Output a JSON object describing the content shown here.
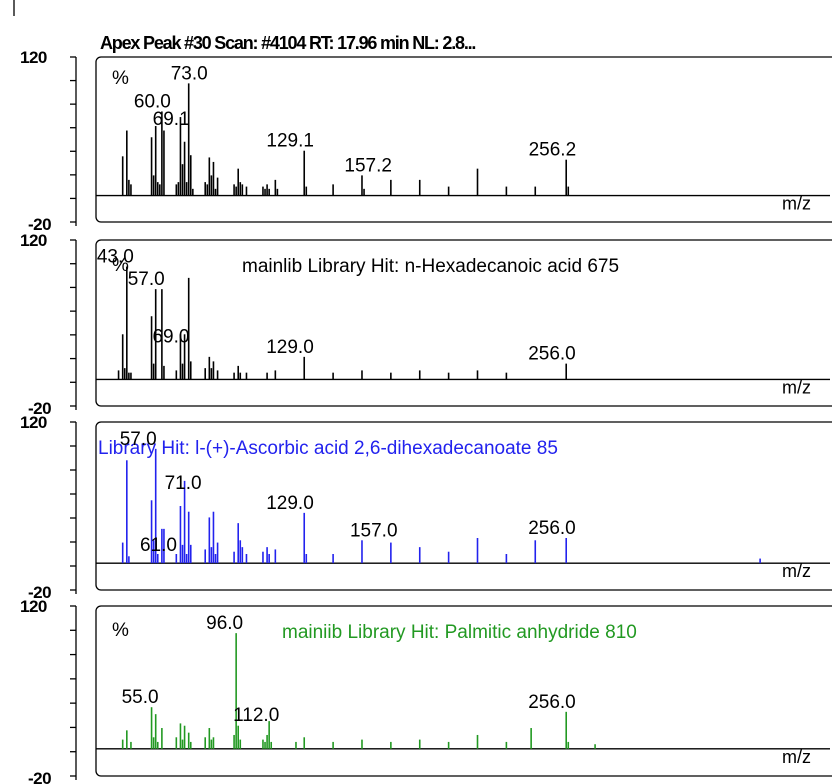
{
  "header": "Apex Peak #30 Scan: #4104  RT: 17.96 min NL: 2.8...",
  "chart_data": [
    {
      "type": "bar",
      "title": "Apex Peak #30 Scan: #4104  RT: 17.96 min NL: 2.8...",
      "ylim": [
        -20,
        120
      ],
      "ytick_labels": [
        "120",
        "-20"
      ],
      "ylabel": "%",
      "xlabel": "m/z",
      "color": "#000000",
      "peak_labels": [
        {
          "mz": 73.0,
          "label": "73.0"
        },
        {
          "mz": 60.0,
          "label": "60.0"
        },
        {
          "mz": 69.1,
          "label": "69.1"
        },
        {
          "mz": 129.1,
          "label": "129.1"
        },
        {
          "mz": 157.2,
          "label": "157.2"
        },
        {
          "mz": 256.2,
          "label": "256.2"
        }
      ],
      "peaks": [
        [
          41,
          35
        ],
        [
          43,
          58
        ],
        [
          44,
          14
        ],
        [
          45,
          10
        ],
        [
          55,
          52
        ],
        [
          56,
          18
        ],
        [
          57,
          62
        ],
        [
          58,
          12
        ],
        [
          59,
          10
        ],
        [
          60,
          75
        ],
        [
          61,
          58
        ],
        [
          67,
          10
        ],
        [
          68,
          12
        ],
        [
          69,
          70
        ],
        [
          70,
          28
        ],
        [
          71,
          48
        ],
        [
          72,
          12
        ],
        [
          73,
          100
        ],
        [
          74,
          36
        ],
        [
          75,
          6
        ],
        [
          81,
          12
        ],
        [
          82,
          10
        ],
        [
          83,
          34
        ],
        [
          84,
          18
        ],
        [
          85,
          30
        ],
        [
          86,
          6
        ],
        [
          87,
          16
        ],
        [
          95,
          10
        ],
        [
          96,
          8
        ],
        [
          97,
          24
        ],
        [
          98,
          12
        ],
        [
          99,
          10
        ],
        [
          101,
          8
        ],
        [
          109,
          8
        ],
        [
          110,
          6
        ],
        [
          111,
          10
        ],
        [
          112,
          6
        ],
        [
          115,
          14
        ],
        [
          116,
          6
        ],
        [
          129,
          40
        ],
        [
          130,
          8
        ],
        [
          143,
          10
        ],
        [
          157,
          18
        ],
        [
          158,
          6
        ],
        [
          171,
          14
        ],
        [
          185,
          14
        ],
        [
          199,
          8
        ],
        [
          213,
          24
        ],
        [
          227,
          8
        ],
        [
          241,
          8
        ],
        [
          256,
          32
        ],
        [
          257,
          8
        ]
      ]
    },
    {
      "type": "bar",
      "title": "mainlib Library Hit: n-Hexadecanoic acid 675",
      "ylim": [
        -20,
        120
      ],
      "ytick_labels": [
        "120",
        "-20"
      ],
      "ylabel": "%",
      "xlabel": "m/z",
      "color": "#000000",
      "peak_labels": [
        {
          "mz": 43.0,
          "label": "43.0"
        },
        {
          "mz": 57.0,
          "label": "57.0"
        },
        {
          "mz": 69.0,
          "label": "69.0"
        },
        {
          "mz": 129.0,
          "label": "129.0"
        },
        {
          "mz": 256.0,
          "label": "256.0"
        }
      ],
      "peaks": [
        [
          39,
          8
        ],
        [
          41,
          40
        ],
        [
          42,
          10
        ],
        [
          43,
          100
        ],
        [
          44,
          6
        ],
        [
          45,
          6
        ],
        [
          55,
          56
        ],
        [
          56,
          14
        ],
        [
          57,
          80
        ],
        [
          60,
          80
        ],
        [
          61,
          12
        ],
        [
          67,
          8
        ],
        [
          69,
          40
        ],
        [
          70,
          14
        ],
        [
          71,
          40
        ],
        [
          73,
          90
        ],
        [
          74,
          16
        ],
        [
          81,
          10
        ],
        [
          83,
          20
        ],
        [
          84,
          10
        ],
        [
          85,
          16
        ],
        [
          87,
          8
        ],
        [
          95,
          6
        ],
        [
          97,
          12
        ],
        [
          98,
          6
        ],
        [
          101,
          6
        ],
        [
          111,
          6
        ],
        [
          115,
          8
        ],
        [
          129,
          20
        ],
        [
          143,
          6
        ],
        [
          157,
          8
        ],
        [
          171,
          6
        ],
        [
          185,
          8
        ],
        [
          199,
          6
        ],
        [
          213,
          8
        ],
        [
          227,
          6
        ],
        [
          256,
          14
        ]
      ]
    },
    {
      "type": "bar",
      "title": "Library Hit: l-(+)-Ascorbic acid 2,6-dihexadecanoate 85",
      "ylim": [
        -20,
        120
      ],
      "ytick_labels": [
        "120",
        "-20"
      ],
      "ylabel": "%",
      "xlabel": "m/z",
      "color": "#2222ee",
      "peak_labels": [
        {
          "mz": 57.0,
          "label": "57.0"
        },
        {
          "mz": 71.0,
          "label": "71.0"
        },
        {
          "mz": 61.0,
          "label": "61.0"
        },
        {
          "mz": 129.0,
          "label": "129.0"
        },
        {
          "mz": 157.0,
          "label": "157.0"
        },
        {
          "mz": 256.0,
          "label": "256.0"
        }
      ],
      "peaks": [
        [
          41,
          18
        ],
        [
          43,
          90
        ],
        [
          44,
          6
        ],
        [
          55,
          55
        ],
        [
          56,
          20
        ],
        [
          57,
          100
        ],
        [
          58,
          8
        ],
        [
          60,
          30
        ],
        [
          61,
          30
        ],
        [
          67,
          8
        ],
        [
          69,
          50
        ],
        [
          70,
          16
        ],
        [
          71,
          72
        ],
        [
          72,
          8
        ],
        [
          73,
          45
        ],
        [
          74,
          16
        ],
        [
          81,
          12
        ],
        [
          83,
          40
        ],
        [
          84,
          14
        ],
        [
          85,
          45
        ],
        [
          86,
          8
        ],
        [
          87,
          18
        ],
        [
          95,
          10
        ],
        [
          97,
          35
        ],
        [
          98,
          20
        ],
        [
          99,
          14
        ],
        [
          101,
          8
        ],
        [
          109,
          10
        ],
        [
          111,
          14
        ],
        [
          112,
          8
        ],
        [
          115,
          12
        ],
        [
          129,
          44
        ],
        [
          130,
          8
        ],
        [
          143,
          8
        ],
        [
          157,
          20
        ],
        [
          171,
          18
        ],
        [
          185,
          14
        ],
        [
          199,
          10
        ],
        [
          213,
          22
        ],
        [
          227,
          8
        ],
        [
          241,
          20
        ],
        [
          256,
          22
        ],
        [
          350,
          4
        ]
      ]
    },
    {
      "type": "bar",
      "title": "mainiib Library Hit: Palmitic anhydride 810",
      "ylim": [
        -20,
        120
      ],
      "ytick_labels": [
        "120",
        "-20"
      ],
      "ylabel": "%",
      "xlabel": "m/z",
      "color": "#229922",
      "peak_labels": [
        {
          "mz": 96.0,
          "label": "96.0"
        },
        {
          "mz": 55.0,
          "label": "55.0"
        },
        {
          "mz": 112.0,
          "label": "112.0"
        },
        {
          "mz": 256.0,
          "label": "256.0"
        }
      ],
      "peaks": [
        [
          41,
          8
        ],
        [
          43,
          16
        ],
        [
          45,
          6
        ],
        [
          55,
          36
        ],
        [
          56,
          10
        ],
        [
          57,
          30
        ],
        [
          58,
          6
        ],
        [
          60,
          18
        ],
        [
          67,
          10
        ],
        [
          69,
          22
        ],
        [
          70,
          8
        ],
        [
          71,
          20
        ],
        [
          73,
          14
        ],
        [
          74,
          6
        ],
        [
          81,
          10
        ],
        [
          83,
          18
        ],
        [
          84,
          8
        ],
        [
          85,
          10
        ],
        [
          95,
          12
        ],
        [
          96,
          100
        ],
        [
          97,
          20
        ],
        [
          98,
          8
        ],
        [
          109,
          8
        ],
        [
          110,
          6
        ],
        [
          111,
          12
        ],
        [
          112,
          24
        ],
        [
          113,
          6
        ],
        [
          125,
          6
        ],
        [
          129,
          10
        ],
        [
          143,
          6
        ],
        [
          157,
          8
        ],
        [
          171,
          6
        ],
        [
          185,
          8
        ],
        [
          199,
          6
        ],
        [
          213,
          12
        ],
        [
          227,
          6
        ],
        [
          239,
          18
        ],
        [
          256,
          32
        ],
        [
          257,
          6
        ],
        [
          270,
          4
        ]
      ]
    }
  ]
}
